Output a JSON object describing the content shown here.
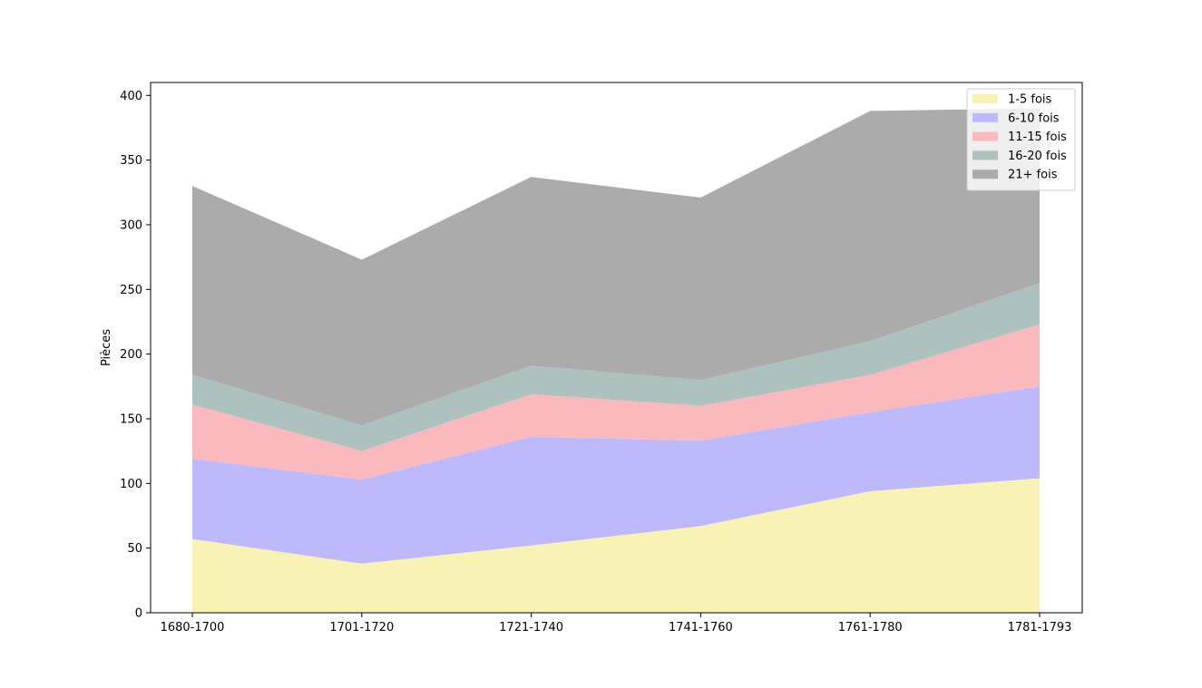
{
  "chart_data": {
    "type": "area",
    "stacked": true,
    "categories": [
      "1680-1700",
      "1701-1720",
      "1721-1740",
      "1741-1760",
      "1761-1780",
      "1781-1793"
    ],
    "ylabel": "Pièces",
    "xlabel": "",
    "title": "",
    "ylim": [
      0,
      410
    ],
    "yticks": [
      0,
      50,
      100,
      150,
      200,
      250,
      300,
      350,
      400
    ],
    "legend_position": "top-right",
    "grid": false,
    "series": [
      {
        "name": "1-5 fois",
        "color": "#f8f2b7",
        "values": [
          57,
          38,
          52,
          67,
          94,
          104
        ]
      },
      {
        "name": "6-10 fois",
        "color": "#bdb9fa",
        "values": [
          62,
          65,
          84,
          66,
          61,
          71
        ]
      },
      {
        "name": "11-15 fois",
        "color": "#fab9bd",
        "values": [
          42,
          22,
          33,
          27,
          29,
          48
        ]
      },
      {
        "name": "16-20 fois",
        "color": "#adc2bf",
        "values": [
          23,
          20,
          22,
          20,
          26,
          32
        ]
      },
      {
        "name": "21+ fois",
        "color": "#ababab",
        "values": [
          146,
          128,
          146,
          141,
          178,
          135
        ]
      }
    ]
  }
}
